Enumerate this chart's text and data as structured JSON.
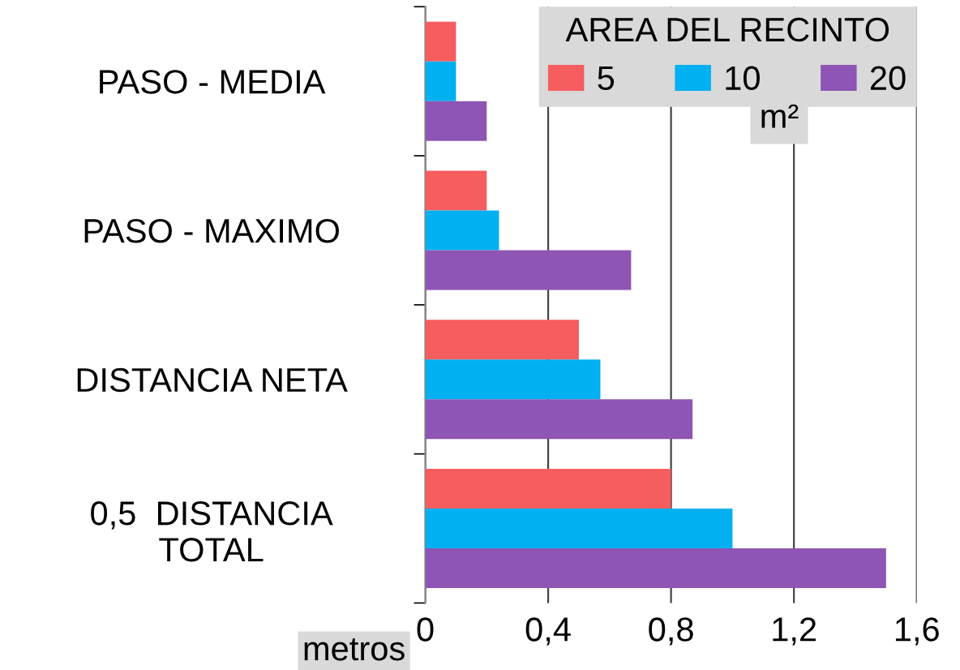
{
  "chart_data": {
    "type": "bar",
    "orientation": "horizontal",
    "legend_title": "AREA DEL RECINTO",
    "xlabel": "metros",
    "categories": [
      "PASO - MEDIA",
      "PASO - MAXIMO",
      "DISTANCIA NETA",
      "0,5  DISTANCIA\nTOTAL"
    ],
    "series": [
      {
        "name": "5",
        "color": "#f65d5f",
        "values": [
          0.1,
          0.2,
          0.5,
          0.8
        ]
      },
      {
        "name": "10",
        "color": "#00b0f0",
        "values": [
          0.1,
          0.24,
          0.57,
          1.0
        ]
      },
      {
        "name": "20",
        "color": "#8e55b5",
        "values": [
          0.2,
          0.67,
          0.87,
          1.5
        ]
      }
    ],
    "xlim": [
      0,
      1.6
    ],
    "xticks": [
      0,
      {
        "value": 0.4,
        "label": "0,4"
      },
      {
        "value": 0.8,
        "label": "0,8"
      },
      {
        "value": 1.2,
        "label": "1,2"
      },
      {
        "value": 1.6,
        "label": "1,6"
      }
    ],
    "grid": "x",
    "legend": "top right",
    "annotations": [
      "m²"
    ]
  }
}
